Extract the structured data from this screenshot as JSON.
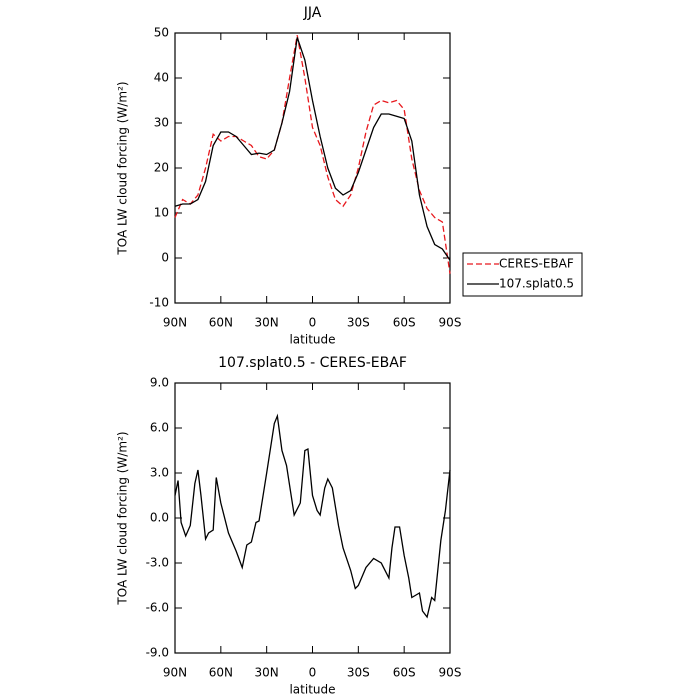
{
  "chart_data": [
    {
      "type": "line",
      "title": "JJA",
      "xlabel": "latitude",
      "ylabel": "TOA LW cloud forcing (W/m²)",
      "x": [
        90,
        85,
        80,
        75,
        70,
        65,
        60,
        55,
        50,
        45,
        40,
        35,
        30,
        25,
        20,
        15,
        10,
        5,
        0,
        -5,
        -10,
        -15,
        -20,
        -25,
        -30,
        -35,
        -40,
        -45,
        -50,
        -55,
        -60,
        -65,
        -70,
        -75,
        -80,
        -85,
        -90
      ],
      "series": [
        {
          "name": "CERES-EBAF",
          "color": "#e8181d",
          "style": "dashed",
          "values": [
            9,
            13,
            12,
            14,
            20,
            27.5,
            26,
            27,
            27,
            26,
            25,
            22.5,
            22,
            24,
            30,
            40,
            49.5,
            40,
            29,
            25,
            18,
            13,
            11.5,
            14,
            20,
            28,
            34,
            35,
            34.5,
            35,
            33,
            22,
            15,
            11,
            9,
            8,
            -3.5
          ]
        },
        {
          "name": "107.splat0.5",
          "color": "#000000",
          "style": "solid",
          "values": [
            11.5,
            12,
            12,
            13,
            17,
            25,
            28,
            28,
            27,
            25,
            23,
            23.3,
            23,
            24,
            30,
            37,
            49,
            44,
            35,
            27,
            20,
            15.5,
            14,
            15,
            19,
            24,
            29,
            32,
            32,
            31.5,
            31,
            26,
            14,
            7,
            3,
            2,
            -0.5
          ]
        }
      ],
      "xlim": [
        90,
        -90
      ],
      "xticks": [
        {
          "value": 90,
          "label": "90N"
        },
        {
          "value": 60,
          "label": "60N"
        },
        {
          "value": 30,
          "label": "30N"
        },
        0,
        {
          "value": -30,
          "label": "30S"
        },
        {
          "value": -60,
          "label": "60S"
        },
        {
          "value": -90,
          "label": "90S"
        }
      ],
      "ylim": [
        -10,
        50
      ],
      "yticks": [
        -10,
        0,
        10,
        20,
        30,
        40,
        50
      ],
      "legend": "right"
    },
    {
      "type": "line",
      "title": "107.splat0.5 - CERES-EBAF",
      "xlabel": "latitude",
      "ylabel": "TOA LW cloud forcing (W/m²)",
      "x": [
        90,
        88,
        86,
        83,
        80,
        77,
        75,
        73,
        70,
        68,
        65,
        63,
        60,
        55,
        50,
        46,
        43,
        40,
        37,
        35,
        30,
        25,
        23,
        20,
        17,
        12,
        8,
        5,
        3,
        0,
        -3,
        -5,
        -8,
        -10,
        -13,
        -17,
        -20,
        -25,
        -28,
        -30,
        -35,
        -40,
        -45,
        -50,
        -52,
        -54,
        -57,
        -60,
        -63,
        -65,
        -70,
        -72,
        -75,
        -78,
        -80,
        -84,
        -87,
        -90
      ],
      "series": [
        {
          "name": "107.splat0.5 - CERES-EBAF",
          "color": "#000000",
          "style": "solid",
          "values": [
            1.5,
            2.5,
            -0.3,
            -1.2,
            -0.5,
            2.3,
            3.2,
            1.5,
            -1.4,
            -1,
            -0.8,
            2.7,
            1,
            -1,
            -2.2,
            -3.3,
            -1.8,
            -1.6,
            -0.3,
            -0.2,
            3,
            6.3,
            6.8,
            4.5,
            3.5,
            0.2,
            1,
            4.5,
            4.6,
            1.5,
            0.5,
            0.2,
            2,
            2.6,
            2,
            -0.5,
            -2,
            -3.5,
            -4.7,
            -4.5,
            -3.3,
            -2.7,
            -3,
            -4,
            -2,
            -0.6,
            -0.6,
            -2.5,
            -4,
            -5.3,
            -5,
            -6.2,
            -6.6,
            -5.3,
            -5.5,
            -1.5,
            0.5,
            3.2
          ]
        }
      ],
      "xlim": [
        90,
        -90
      ],
      "xticks": [
        {
          "value": 90,
          "label": "90N"
        },
        {
          "value": 60,
          "label": "60N"
        },
        {
          "value": 30,
          "label": "30N"
        },
        0,
        {
          "value": -30,
          "label": "30S"
        },
        {
          "value": -60,
          "label": "60S"
        },
        {
          "value": -90,
          "label": "90S"
        }
      ],
      "ylim": [
        -9,
        9
      ],
      "yticks": [
        {
          "value": -9,
          "label": "-9.0"
        },
        {
          "value": -6,
          "label": "-6.0"
        },
        {
          "value": -3,
          "label": "-3.0"
        },
        {
          "value": 0,
          "label": "0.0"
        },
        {
          "value": 3,
          "label": "3.0"
        },
        {
          "value": 6,
          "label": "6.0"
        },
        {
          "value": 9,
          "label": "9.0"
        }
      ]
    }
  ]
}
